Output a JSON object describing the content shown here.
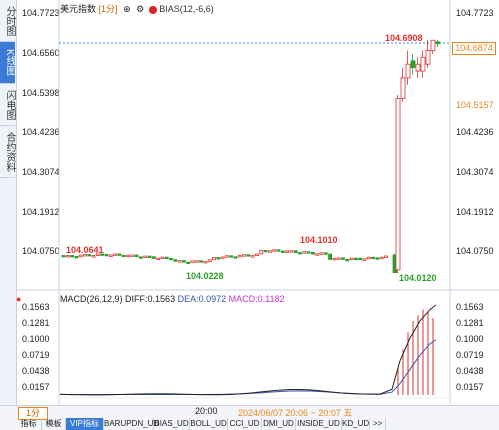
{
  "sidebar": {
    "tabs": [
      {
        "label": "分时图",
        "active": false
      },
      {
        "label": "K线图",
        "active": true
      },
      {
        "label": "闪电图",
        "active": false
      },
      {
        "label": "合约资料",
        "active": false
      }
    ]
  },
  "header": {
    "symbol": "美元指数",
    "period": "[1分]",
    "indicator": "BIAS(12,-6,6)",
    "icons": [
      "plus-icon",
      "gear-icon",
      "red-dot-icon"
    ]
  },
  "price_axis": {
    "left_ticks": [
      "104.7723",
      "104.6560",
      "104.5398",
      "104.4236",
      "104.3074",
      "104.1912",
      "104.0750"
    ],
    "right_ticks": [
      "104.7723",
      "104.6874",
      "104.5157",
      "104.4236",
      "104.3074",
      "104.1912",
      "104.0750"
    ],
    "current_price": "104.6874",
    "highlight_price": "104.5157",
    "accent_color": "#e8871e"
  },
  "annotations": {
    "high": "104.6908",
    "low_right": "104.0120",
    "left_label": "104.0641",
    "mid_low": "104.0228",
    "mid_high": "104.1010"
  },
  "macd": {
    "title": "MACD(26,12,9)",
    "diff": "DIFF:0.1563",
    "dea": "DEA:0.0972",
    "macd": "MACD:0.1182",
    "ticks": [
      "0.1563",
      "0.1281",
      "0.1000",
      "0.0719",
      "0.0438",
      "0.0157"
    ]
  },
  "time_axis": {
    "time_label": "20:00",
    "range_label": "2024/06/07 20:06 ~ 20:07 五"
  },
  "bottom_bar": {
    "period_button": "1分",
    "tabs": [
      "指标",
      "模板",
      "VIP指标",
      "BARUPDN_UD",
      "BIAS_UD",
      "BOLL_UD",
      "CCI_UD",
      "DMI_UD",
      "INSIDE_UD",
      "KD_UD",
      ">>"
    ],
    "active_tab": "VIP指标"
  },
  "colors": {
    "up": "#e03030",
    "down": "#2aa02a",
    "dashed_line": "#3a8ee0",
    "dea_line": "#3355aa",
    "diff_line": "#222222"
  }
}
